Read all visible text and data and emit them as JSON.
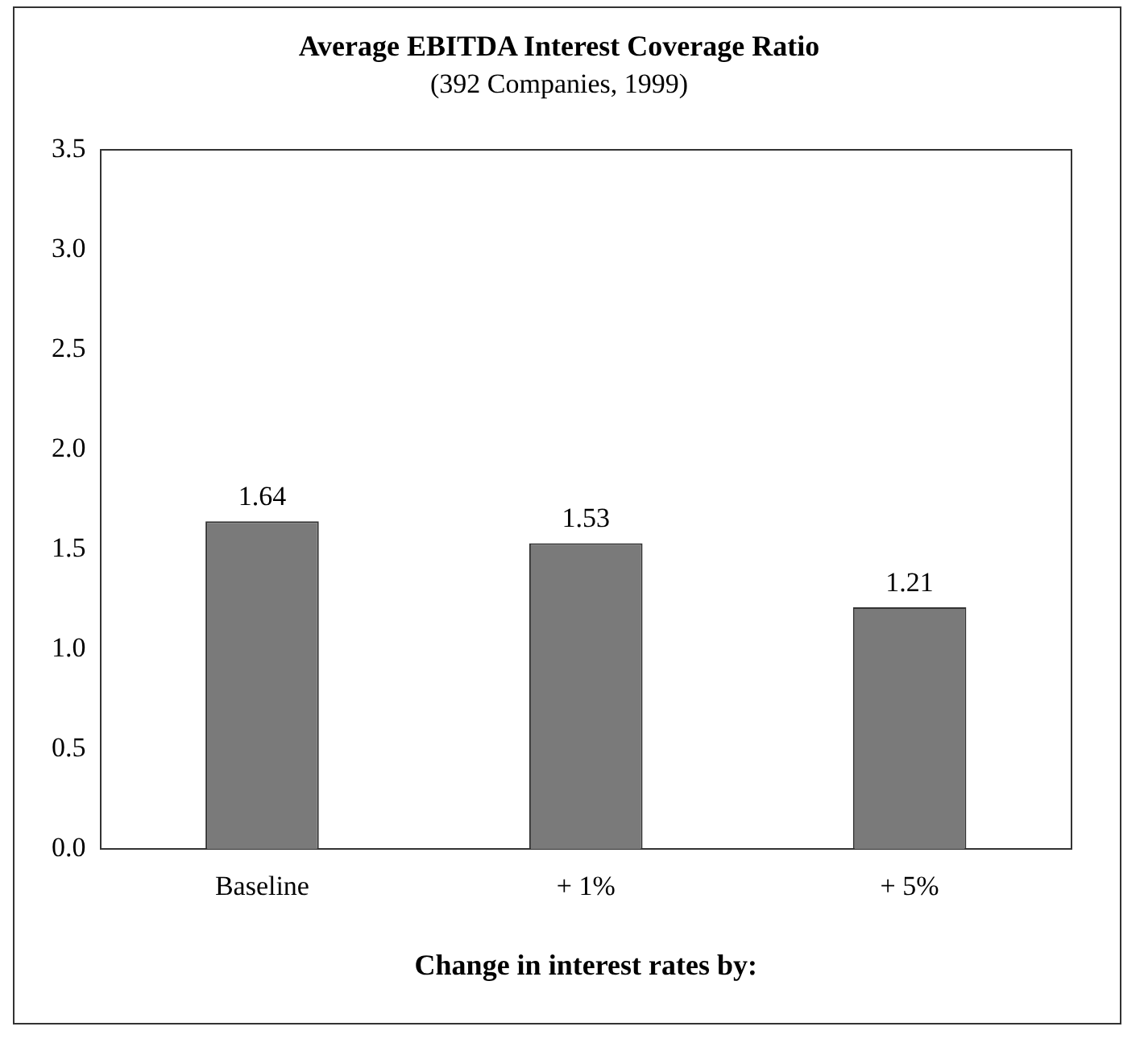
{
  "chart_data": {
    "type": "bar",
    "title": "Average EBITDA Interest Coverage Ratio",
    "subtitle": "(392 Companies, 1999)",
    "categories": [
      "Baseline",
      "+ 1%",
      "+ 5%"
    ],
    "values": [
      1.64,
      1.53,
      1.21
    ],
    "color": "#7a7a7a",
    "xlabel": "Change in interest rates by:",
    "ylim": [
      0,
      3.5
    ],
    "yticks": [
      {
        "value": 0,
        "label": "0.0"
      },
      {
        "value": 0.5,
        "label": "0.5"
      },
      {
        "value": 1,
        "label": "1.0"
      },
      {
        "value": 1.5,
        "label": "1.5"
      },
      {
        "value": 2,
        "label": "2.0"
      },
      {
        "value": 2.5,
        "label": "2.5"
      },
      {
        "value": 3,
        "label": "3.0"
      },
      {
        "value": 3.5,
        "label": "3.5"
      }
    ],
    "grid": false,
    "legend": false,
    "data_labels": true
  }
}
